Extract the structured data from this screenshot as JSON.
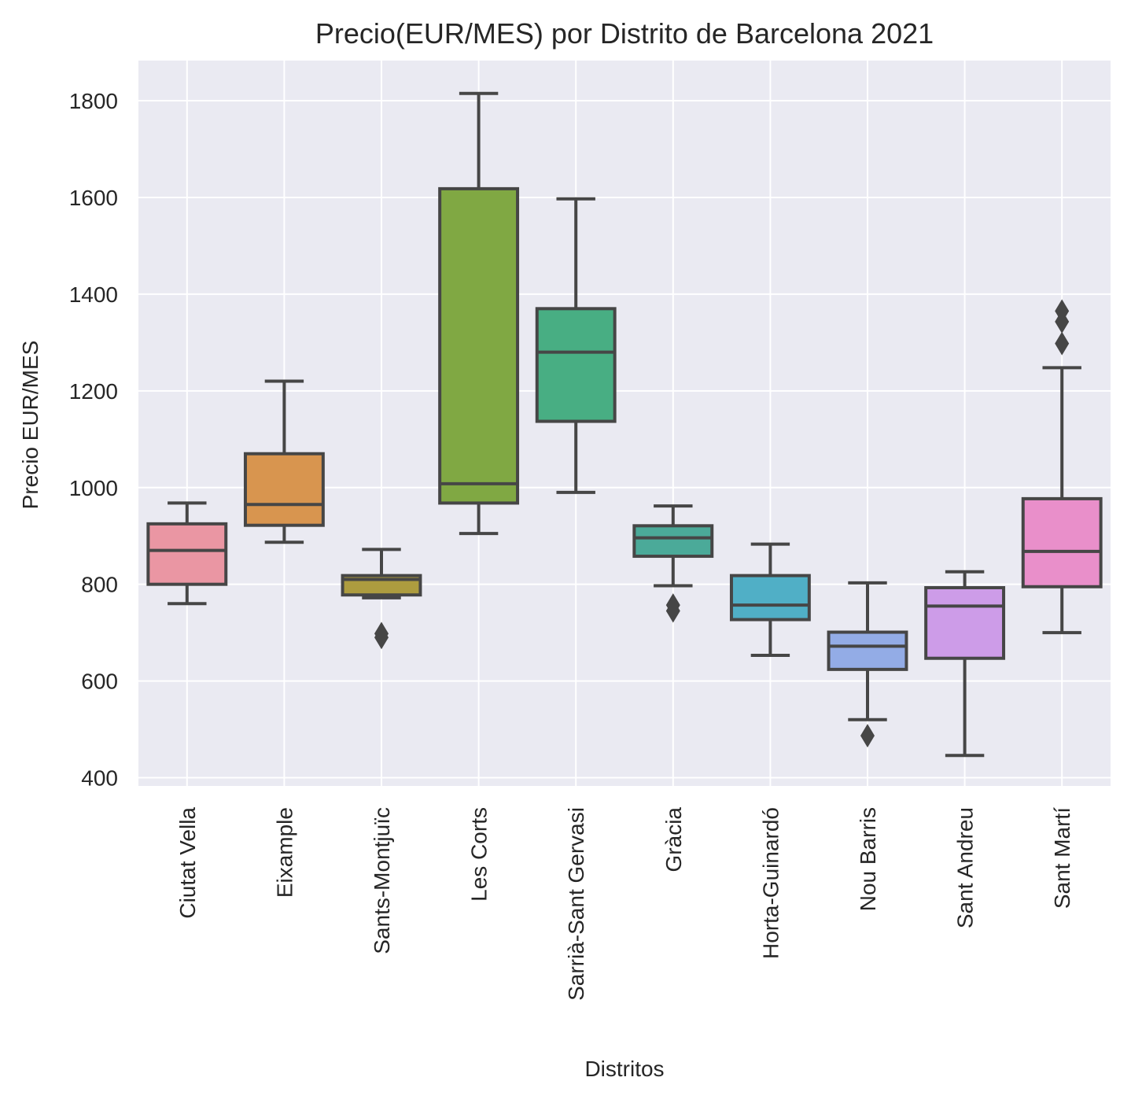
{
  "chart_data": {
    "type": "box",
    "title": "Precio(EUR/MES) por Distrito de Barcelona 2021",
    "xlabel": "Distritos",
    "ylabel": "Precio EUR/MES",
    "ylim": [
      383,
      1883
    ],
    "yticks": [
      400,
      600,
      800,
      1000,
      1200,
      1400,
      1600,
      1800
    ],
    "grid": true,
    "background": "#eaeaf2",
    "categories": [
      "Ciutat Vella",
      "Eixample",
      "Sants-Montjuïc",
      "Les Corts",
      "Sarrià-Sant Gervasi",
      "Gràcia",
      "Horta-Guinardó",
      "Nou Barris",
      "Sant Andreu",
      "Sant Martí"
    ],
    "boxes": [
      {
        "category": "Ciutat Vella",
        "whislo": 760,
        "q1": 800,
        "med": 870,
        "q3": 925,
        "whishi": 968,
        "fliers": [],
        "color": "#ea96a3"
      },
      {
        "category": "Eixample",
        "whislo": 887,
        "q1": 922,
        "med": 965,
        "q3": 1070,
        "whishi": 1220,
        "fliers": [],
        "color": "#d8954f"
      },
      {
        "category": "Sants-Montjuïc",
        "whislo": 772,
        "q1": 778,
        "med": 810,
        "q3": 818,
        "whishi": 872,
        "fliers": [
          690,
          698
        ],
        "color": "#ad9c3f"
      },
      {
        "category": "Les Corts",
        "whislo": 905,
        "q1": 968,
        "med": 1008,
        "q3": 1618,
        "whishi": 1815,
        "fliers": [],
        "color": "#80a843"
      },
      {
        "category": "Sarrià-Sant Gervasi",
        "whislo": 990,
        "q1": 1137,
        "med": 1280,
        "q3": 1370,
        "whishi": 1597,
        "fliers": [],
        "color": "#48ae83"
      },
      {
        "category": "Gràcia",
        "whislo": 797,
        "q1": 858,
        "med": 896,
        "q3": 921,
        "whishi": 962,
        "fliers": [
          745,
          757
        ],
        "color": "#4baa99"
      },
      {
        "category": "Horta-Guinardó",
        "whislo": 653,
        "q1": 727,
        "med": 757,
        "q3": 818,
        "whishi": 883,
        "fliers": [],
        "color": "#50afc6"
      },
      {
        "category": "Nou Barris",
        "whislo": 520,
        "q1": 624,
        "med": 672,
        "q3": 701,
        "whishi": 803,
        "fliers": [
          487
        ],
        "color": "#93ace6"
      },
      {
        "category": "Sant Andreu",
        "whislo": 446,
        "q1": 647,
        "med": 755,
        "q3": 793,
        "whishi": 826,
        "fliers": [],
        "color": "#cd9ce8"
      },
      {
        "category": "Sant Martí",
        "whislo": 700,
        "q1": 795,
        "med": 868,
        "q3": 977,
        "whishi": 1248,
        "fliers": [
          1298,
          1343,
          1365
        ],
        "color": "#e98fca"
      }
    ]
  }
}
